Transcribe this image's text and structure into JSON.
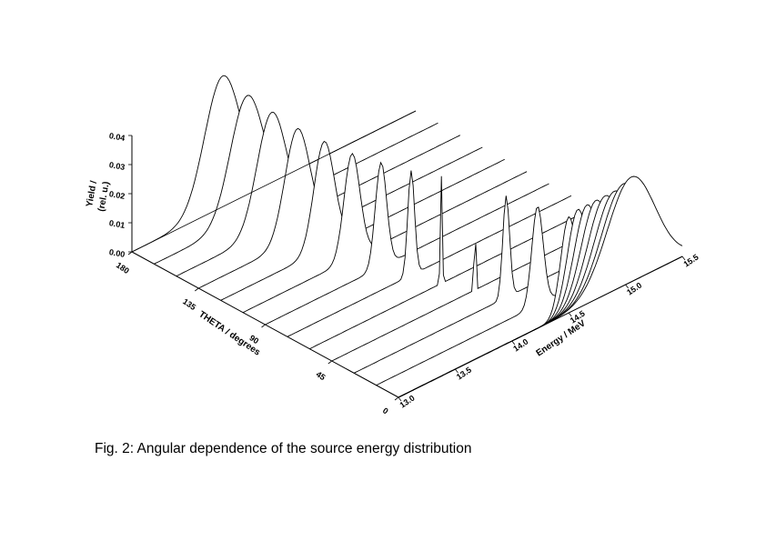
{
  "caption": "Fig. 2:  Angular dependence of the source energy distribution",
  "chart_data": {
    "type": "waterfall-3d",
    "title": "",
    "zlabel_line1": "Yield /",
    "zlabel_line2": "(rel. u.)",
    "ylabel": "THETA / degrees",
    "xlabel": "Energy / MeV",
    "z_ticks": [
      "0.00",
      "0.01",
      "0.02",
      "0.03",
      "0.04"
    ],
    "z_range": [
      0,
      0.04
    ],
    "theta_ticks": [
      "180",
      "135",
      "90",
      "45",
      "0"
    ],
    "theta_range": [
      0,
      180
    ],
    "energy_ticks": [
      "13.0",
      "13.5",
      "14.0",
      "14.5",
      "15.0",
      "15.5"
    ],
    "energy_range": [
      13.0,
      15.5
    ],
    "series": [
      {
        "theta": 180,
        "peak_energy": 13.8,
        "peak_yield": 0.045,
        "width": 0.16
      },
      {
        "theta": 165,
        "peak_energy": 13.82,
        "peak_yield": 0.042,
        "width": 0.15
      },
      {
        "theta": 150,
        "peak_energy": 13.84,
        "peak_yield": 0.04,
        "width": 0.13
      },
      {
        "theta": 135,
        "peak_energy": 13.87,
        "peak_yield": 0.038,
        "width": 0.11
      },
      {
        "theta": 120,
        "peak_energy": 13.91,
        "peak_yield": 0.037,
        "width": 0.09
      },
      {
        "theta": 105,
        "peak_energy": 13.96,
        "peak_yield": 0.036,
        "width": 0.07
      },
      {
        "theta": 90,
        "peak_energy": 14.02,
        "peak_yield": 0.036,
        "width": 0.05
      },
      {
        "theta": 75,
        "peak_energy": 14.09,
        "peak_yield": 0.036,
        "width": 0.03
      },
      {
        "theta": 60,
        "peak_energy": 14.16,
        "peak_yield": 0.037,
        "width": 0.008
      },
      {
        "theta": 45,
        "peak_energy": 14.26,
        "peak_yield": 0.037,
        "width": 0.006
      },
      {
        "theta": 30,
        "peak_energy": 14.34,
        "peak_yield": 0.035,
        "width": 0.03
      },
      {
        "theta": 15,
        "peak_energy": 14.42,
        "peak_yield": 0.034,
        "width": 0.05
      },
      {
        "theta": 0,
        "peak_energy": 14.5,
        "peak_yield": 0.033,
        "width": 0.07
      }
    ],
    "extra_curves_after_0deg": [
      {
        "peak_energy": 14.58,
        "peak_yield": 0.034,
        "width": 0.09
      },
      {
        "peak_energy": 14.66,
        "peak_yield": 0.034,
        "width": 0.11
      },
      {
        "peak_energy": 14.74,
        "peak_yield": 0.034,
        "width": 0.13
      },
      {
        "peak_energy": 14.82,
        "peak_yield": 0.034,
        "width": 0.15
      },
      {
        "peak_energy": 14.9,
        "peak_yield": 0.034,
        "width": 0.17
      },
      {
        "peak_energy": 14.98,
        "peak_yield": 0.035,
        "width": 0.19
      },
      {
        "peak_energy": 15.05,
        "peak_yield": 0.036,
        "width": 0.21
      }
    ],
    "grid": false,
    "legend": "none"
  }
}
